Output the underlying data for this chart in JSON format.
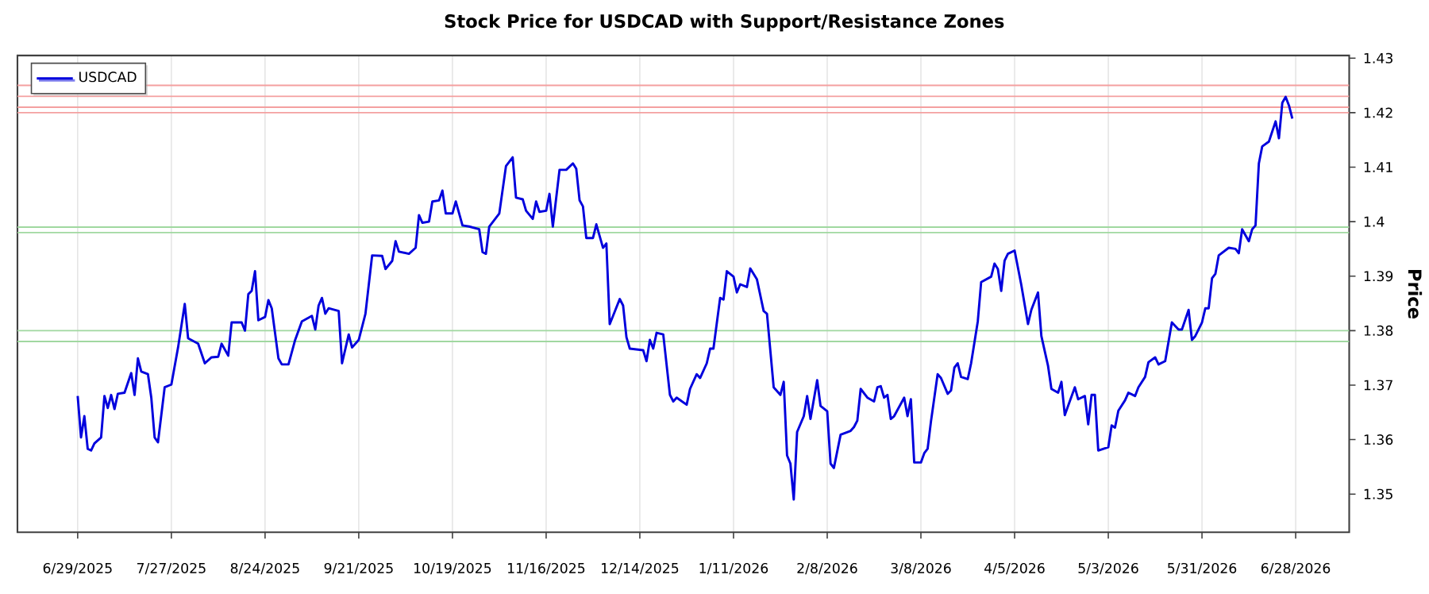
{
  "chart_data": {
    "type": "line",
    "title": "Stock Price for USDCAD with Support/Resistance Zones",
    "ylabel": "Price",
    "x": [
      "2025-06-29",
      "2025-06-30",
      "2025-07-01",
      "2025-07-02",
      "2025-07-03",
      "2025-07-04",
      "2025-07-06",
      "2025-07-07",
      "2025-07-08",
      "2025-07-09",
      "2025-07-10",
      "2025-07-11",
      "2025-07-13",
      "2025-07-15",
      "2025-07-16",
      "2025-07-17",
      "2025-07-18",
      "2025-07-20",
      "2025-07-21",
      "2025-07-22",
      "2025-07-23",
      "2025-07-25",
      "2025-07-27",
      "2025-07-29",
      "2025-07-31",
      "2025-08-01",
      "2025-08-04",
      "2025-08-06",
      "2025-08-08",
      "2025-08-10",
      "2025-08-11",
      "2025-08-13",
      "2025-08-14",
      "2025-08-17",
      "2025-08-18",
      "2025-08-19",
      "2025-08-20",
      "2025-08-21",
      "2025-08-22",
      "2025-08-24",
      "2025-08-25",
      "2025-08-26",
      "2025-08-28",
      "2025-08-29",
      "2025-08-31",
      "2025-09-02",
      "2025-09-04",
      "2025-09-07",
      "2025-09-08",
      "2025-09-09",
      "2025-09-10",
      "2025-09-11",
      "2025-09-12",
      "2025-09-15",
      "2025-09-16",
      "2025-09-18",
      "2025-09-19",
      "2025-09-21",
      "2025-09-23",
      "2025-09-25",
      "2025-09-28",
      "2025-09-29",
      "2025-10-01",
      "2025-10-02",
      "2025-10-03",
      "2025-10-06",
      "2025-10-08",
      "2025-10-09",
      "2025-10-10",
      "2025-10-12",
      "2025-10-13",
      "2025-10-15",
      "2025-10-16",
      "2025-10-17",
      "2025-10-19",
      "2025-10-20",
      "2025-10-22",
      "2025-10-24",
      "2025-10-27",
      "2025-10-28",
      "2025-10-29",
      "2025-10-30",
      "2025-11-02",
      "2025-11-04",
      "2025-11-06",
      "2025-11-07",
      "2025-11-09",
      "2025-11-10",
      "2025-11-12",
      "2025-11-13",
      "2025-11-14",
      "2025-11-16",
      "2025-11-17",
      "2025-11-18",
      "2025-11-20",
      "2025-11-22",
      "2025-11-24",
      "2025-11-25",
      "2025-11-26",
      "2025-11-27",
      "2025-11-28",
      "2025-11-30",
      "2025-12-01",
      "2025-12-03",
      "2025-12-04",
      "2025-12-05",
      "2025-12-06",
      "2025-12-08",
      "2025-12-09",
      "2025-12-10",
      "2025-12-11",
      "2025-12-15",
      "2025-12-16",
      "2025-12-17",
      "2025-12-18",
      "2025-12-19",
      "2025-12-21",
      "2025-12-23",
      "2025-12-24",
      "2025-12-25",
      "2025-12-28",
      "2025-12-29",
      "2025-12-31",
      "2026-01-01",
      "2026-01-03",
      "2026-01-04",
      "2026-01-05",
      "2026-01-07",
      "2026-01-08",
      "2026-01-09",
      "2026-01-11",
      "2026-01-12",
      "2026-01-13",
      "2026-01-15",
      "2026-01-16",
      "2026-01-18",
      "2026-01-20",
      "2026-01-21",
      "2026-01-23",
      "2026-01-25",
      "2026-01-26",
      "2026-01-27",
      "2026-01-28",
      "2026-01-29",
      "2026-01-30",
      "2026-02-01",
      "2026-02-02",
      "2026-02-03",
      "2026-02-05",
      "2026-02-06",
      "2026-02-08",
      "2026-02-09",
      "2026-02-10",
      "2026-02-12",
      "2026-02-15",
      "2026-02-16",
      "2026-02-17",
      "2026-02-18",
      "2026-02-20",
      "2026-02-22",
      "2026-02-23",
      "2026-02-24",
      "2026-02-25",
      "2026-02-26",
      "2026-02-27",
      "2026-02-28",
      "2026-03-03",
      "2026-03-04",
      "2026-03-05",
      "2026-03-06",
      "2026-03-08",
      "2026-03-09",
      "2026-03-10",
      "2026-03-11",
      "2026-03-13",
      "2026-03-14",
      "2026-03-16",
      "2026-03-17",
      "2026-03-18",
      "2026-03-19",
      "2026-03-20",
      "2026-03-22",
      "2026-03-23",
      "2026-03-25",
      "2026-03-26",
      "2026-03-29",
      "2026-03-30",
      "2026-03-31",
      "2026-04-01",
      "2026-04-02",
      "2026-04-03",
      "2026-04-05",
      "2026-04-07",
      "2026-04-09",
      "2026-04-10",
      "2026-04-12",
      "2026-04-13",
      "2026-04-15",
      "2026-04-16",
      "2026-04-18",
      "2026-04-19",
      "2026-04-20",
      "2026-04-21",
      "2026-04-23",
      "2026-04-24",
      "2026-04-26",
      "2026-04-27",
      "2026-04-28",
      "2026-04-29",
      "2026-04-30",
      "2026-05-03",
      "2026-05-04",
      "2026-05-05",
      "2026-05-06",
      "2026-05-08",
      "2026-05-09",
      "2026-05-11",
      "2026-05-12",
      "2026-05-14",
      "2026-05-15",
      "2026-05-17",
      "2026-05-18",
      "2026-05-20",
      "2026-05-22",
      "2026-05-24",
      "2026-05-25",
      "2026-05-27",
      "2026-05-28",
      "2026-05-29",
      "2026-05-31",
      "2026-06-01",
      "2026-06-02",
      "2026-06-03",
      "2026-06-04",
      "2026-06-05",
      "2026-06-08",
      "2026-06-10",
      "2026-06-11",
      "2026-06-12",
      "2026-06-14",
      "2026-06-15",
      "2026-06-16",
      "2026-06-17",
      "2026-06-18",
      "2026-06-20",
      "2026-06-22",
      "2026-06-23",
      "2026-06-24",
      "2026-06-25",
      "2026-06-26",
      "2026-06-27"
    ],
    "series": [
      {
        "name": "USDCAD",
        "color": "#0000dd",
        "values": [
          1.368,
          1.3604,
          1.3643,
          1.3583,
          1.358,
          1.3593,
          1.3604,
          1.368,
          1.3658,
          1.3682,
          1.3656,
          1.3684,
          1.3686,
          1.3722,
          1.3682,
          1.3749,
          1.3725,
          1.372,
          1.3677,
          1.3604,
          1.3595,
          1.3696,
          1.3701,
          1.3769,
          1.3849,
          1.3786,
          1.3776,
          1.374,
          1.3751,
          1.3752,
          1.3776,
          1.3754,
          1.3815,
          1.3815,
          1.38,
          1.3867,
          1.3873,
          1.3909,
          1.3819,
          1.3825,
          1.3856,
          1.3841,
          1.3749,
          1.3738,
          1.3738,
          1.3783,
          1.3817,
          1.3827,
          1.3802,
          1.3846,
          1.386,
          1.3831,
          1.3841,
          1.3836,
          1.374,
          1.3793,
          1.3769,
          1.3783,
          1.3831,
          1.3938,
          1.3937,
          1.3913,
          1.3928,
          1.3964,
          1.3945,
          1.3941,
          1.3952,
          1.4012,
          1.3998,
          1.4,
          1.4037,
          1.4039,
          1.4057,
          1.4015,
          1.4015,
          1.4037,
          1.3993,
          1.3991,
          1.3986,
          1.3944,
          1.3941,
          1.3991,
          1.4015,
          1.4102,
          1.4118,
          1.4044,
          1.4041,
          1.402,
          1.4005,
          1.4037,
          1.4018,
          1.402,
          1.4051,
          1.3991,
          1.4095,
          1.4095,
          1.4107,
          1.4097,
          1.4039,
          1.4028,
          1.397,
          1.397,
          1.3995,
          1.3952,
          1.396,
          1.3812,
          1.3827,
          1.3858,
          1.3846,
          1.3788,
          1.3767,
          1.3764,
          1.3744,
          1.3783,
          1.3767,
          1.3796,
          1.3793,
          1.3682,
          1.367,
          1.3677,
          1.3664,
          1.3693,
          1.372,
          1.3713,
          1.374,
          1.3767,
          1.3767,
          1.386,
          1.3857,
          1.3909,
          1.3899,
          1.387,
          1.3885,
          1.388,
          1.3914,
          1.3894,
          1.3836,
          1.3831,
          1.3696,
          1.3682,
          1.3706,
          1.3571,
          1.3556,
          1.349,
          1.3614,
          1.3643,
          1.368,
          1.3638,
          1.3709,
          1.3662,
          1.3652,
          1.3556,
          1.3548,
          1.3609,
          1.3616,
          1.3623,
          1.3635,
          1.3693,
          1.3677,
          1.367,
          1.3696,
          1.3698,
          1.3677,
          1.3682,
          1.3638,
          1.3643,
          1.3677,
          1.3643,
          1.3674,
          1.3558,
          1.3558,
          1.3575,
          1.3583,
          1.3633,
          1.372,
          1.3713,
          1.3684,
          1.369,
          1.3732,
          1.374,
          1.3715,
          1.3711,
          1.374,
          1.3817,
          1.3889,
          1.3899,
          1.3923,
          1.3913,
          1.3873,
          1.3928,
          1.3941,
          1.3947,
          1.3884,
          1.3812,
          1.3838,
          1.387,
          1.379,
          1.3735,
          1.3693,
          1.3686,
          1.3706,
          1.3645,
          1.3662,
          1.3696,
          1.3674,
          1.368,
          1.3628,
          1.3682,
          1.3682,
          1.358,
          1.3586,
          1.3626,
          1.3622,
          1.3653,
          1.3672,
          1.3686,
          1.368,
          1.3696,
          1.3715,
          1.3742,
          1.3751,
          1.3738,
          1.3744,
          1.3815,
          1.3802,
          1.3802,
          1.3838,
          1.3783,
          1.379,
          1.3815,
          1.3841,
          1.3841,
          1.3896,
          1.3904,
          1.3938,
          1.3952,
          1.395,
          1.3942,
          1.3986,
          1.3964,
          1.3986,
          1.3993,
          1.4107,
          1.4138,
          1.4147,
          1.4184,
          1.4153,
          1.4218,
          1.4229,
          1.4213,
          1.4189
        ]
      }
    ],
    "xlim": [
      "2025-06-11",
      "2026-07-14"
    ],
    "xticks": [
      {
        "value": "2025-06-29",
        "label": "6/29/2025"
      },
      {
        "value": "2025-07-27",
        "label": "7/27/2025"
      },
      {
        "value": "2025-08-24",
        "label": "8/24/2025"
      },
      {
        "value": "2025-09-21",
        "label": "9/21/2025"
      },
      {
        "value": "2025-10-19",
        "label": "10/19/2025"
      },
      {
        "value": "2025-11-16",
        "label": "11/16/2025"
      },
      {
        "value": "2025-12-14",
        "label": "12/14/2025"
      },
      {
        "value": "2026-01-11",
        "label": "1/11/2026"
      },
      {
        "value": "2026-02-08",
        "label": "2/8/2026"
      },
      {
        "value": "2026-03-08",
        "label": "3/8/2026"
      },
      {
        "value": "2026-04-05",
        "label": "4/5/2026"
      },
      {
        "value": "2026-05-03",
        "label": "5/3/2026"
      },
      {
        "value": "2026-05-31",
        "label": "5/31/2026"
      },
      {
        "value": "2026-06-28",
        "label": "6/28/2026"
      }
    ],
    "ylim": [
      1.343,
      1.4305
    ],
    "yticks": [
      1.35,
      1.36,
      1.37,
      1.38,
      1.39,
      1.4,
      1.41,
      1.42,
      1.43
    ],
    "ref_lines": [
      {
        "axis": "y",
        "value": 1.425,
        "color": "#f4a0a0"
      },
      {
        "axis": "y",
        "value": 1.423,
        "color": "#f4a0a0"
      },
      {
        "axis": "y",
        "value": 1.421,
        "color": "#f4a0a0"
      },
      {
        "axis": "y",
        "value": 1.42,
        "color": "#f4a0a0"
      },
      {
        "axis": "y",
        "value": 1.399,
        "color": "#a0d8a0"
      },
      {
        "axis": "y",
        "value": 1.398,
        "color": "#a0d8a0"
      },
      {
        "axis": "y",
        "value": 1.38,
        "color": "#a0d8a0"
      },
      {
        "axis": "y",
        "value": 1.378,
        "color": "#a0d8a0"
      }
    ],
    "grid": "x",
    "legend": "top left"
  }
}
